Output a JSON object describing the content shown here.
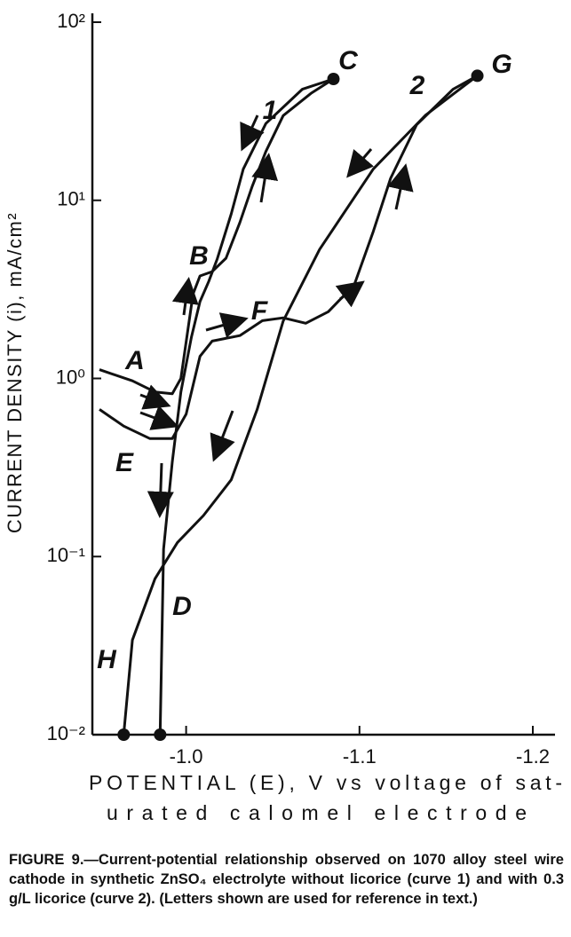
{
  "chart_data": {
    "type": "line",
    "xlabel": [
      "POTENTIAL (E), V vs voltage of sat-",
      "urated calomel electrode"
    ],
    "ylabel": "CURRENT DENSITY (i), mA/cm²",
    "caption": "FIGURE 9.—Current-potential relationship observed on 1070 alloy steel wire cathode in synthetic ZnSO₄ electrolyte without licorice (curve 1) and with 0.3 g/L licorice (curve 2). (Letters shown are used for reference in text.)",
    "annotations": [
      "A",
      "B",
      "C",
      "D",
      "E",
      "F",
      "G",
      "H",
      "1",
      "2"
    ],
    "xlim": [
      -0.95,
      -1.2
    ],
    "xticks": [
      {
        "value": -1,
        "label": "-1.0"
      },
      -1.1,
      -1.2
    ],
    "ylim": [
      0.01,
      100
    ],
    "ylog": true,
    "yticks": [
      {
        "value": 100,
        "label": "10²"
      },
      {
        "value": 10,
        "label": "10¹"
      },
      {
        "value": 1,
        "label": "10⁰"
      },
      {
        "value": 0.1,
        "label": "10⁻¹"
      },
      {
        "value": 0.01,
        "label": "10⁻²"
      }
    ],
    "series": [
      {
        "color": "#111111",
        "x": [
          -0.95,
          -0.969,
          -0.982,
          -0.992,
          -0.997,
          -1.001,
          -1.004,
          -1.008,
          -1.015,
          -1.023,
          -1.031,
          -1.038,
          -1.046,
          -1.056,
          -1.072,
          -1.085
        ],
        "values": [
          1.12,
          0.97,
          0.84,
          0.82,
          1.0,
          1.88,
          2.98,
          3.76,
          3.98,
          4.73,
          7.5,
          11.9,
          18.8,
          29.9,
          39.8,
          48
        ]
      },
      {
        "color": "#111111",
        "x": [
          -1.085,
          -1.067,
          -1.046,
          -1.033,
          -1.026,
          -1.018,
          -1.013,
          -1.008,
          -1.003,
          -0.997,
          -0.992,
          -0.987,
          -0.985
        ],
        "values": [
          48,
          42,
          27,
          15,
          8.4,
          4.7,
          3.5,
          2.7,
          1.7,
          0.84,
          0.34,
          0.11,
          0.01
        ]
      },
      {
        "color": "#111111",
        "x": [
          -0.95,
          -0.964,
          -0.979,
          -0.992,
          -1.0,
          -1.008,
          -1.015,
          -1.031,
          -1.044,
          -1.056,
          -1.069,
          -1.082,
          -1.097,
          -1.108,
          -1.118,
          -1.133,
          -1.154,
          -1.168
        ],
        "values": [
          0.67,
          0.54,
          0.46,
          0.46,
          0.63,
          1.33,
          1.62,
          1.74,
          2.11,
          2.19,
          2.04,
          2.37,
          3.35,
          6.7,
          13.3,
          26.6,
          42,
          50
        ]
      },
      {
        "color": "#111111",
        "x": [
          -1.168,
          -1.138,
          -1.108,
          -1.077,
          -1.056,
          -1.041,
          -1.026,
          -1.01,
          -0.995,
          -0.982,
          -0.969,
          -0.964
        ],
        "values": [
          50,
          30,
          15,
          5.3,
          2.1,
          0.67,
          0.27,
          0.17,
          0.12,
          0.075,
          0.034,
          0.01
        ]
      }
    ]
  }
}
